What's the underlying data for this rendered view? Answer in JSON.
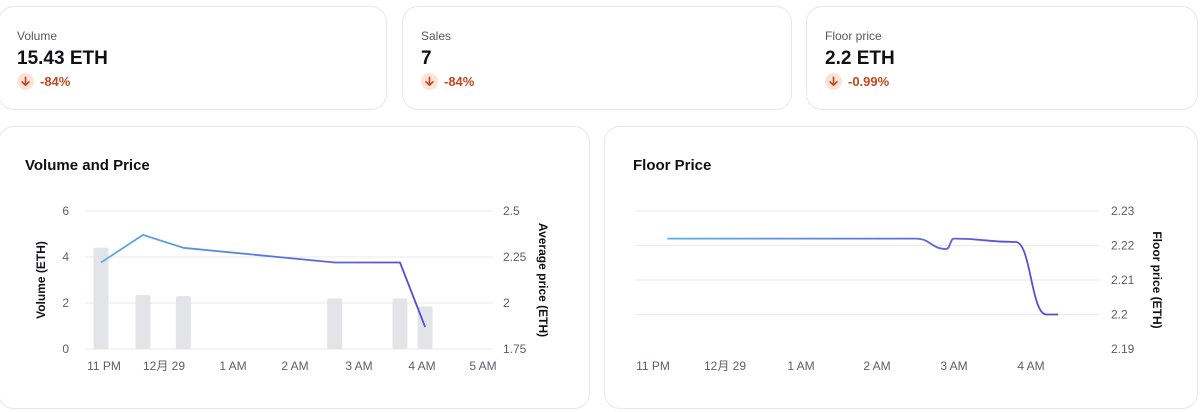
{
  "colors": {
    "negative": "#c2481f",
    "negative_bg": "#fbe3da",
    "bar": "#e3e4e7",
    "grid": "#e9eaed",
    "line_start": "#5ab0e6",
    "line_end": "#5b45d6"
  },
  "stats": [
    {
      "label": "Volume",
      "value": "15.43 ETH",
      "delta": "-84%",
      "icon": "arrow-down-icon"
    },
    {
      "label": "Sales",
      "value": "7",
      "delta": "-84%",
      "icon": "arrow-down-icon"
    },
    {
      "label": "Floor price",
      "value": "2.2 ETH",
      "delta": "-0.99%",
      "icon": "arrow-down-icon"
    }
  ],
  "chart_data": [
    {
      "type": "bar",
      "title": "Volume and Price",
      "x_tick_labels": [
        "11 PM",
        "12月 29",
        "1 AM",
        "2 AM",
        "3 AM",
        "4 AM",
        "5 AM"
      ],
      "left_axis": {
        "label": "Volume (ETH)",
        "ticks": [
          "6",
          "4",
          "2",
          "0"
        ],
        "range": [
          0,
          6
        ]
      },
      "right_axis": {
        "label": "Average price (ETH)",
        "ticks": [
          "2.5",
          "2.25",
          "2",
          "1.75"
        ],
        "range": [
          1.75,
          2.5
        ]
      },
      "grid": true,
      "series": [
        {
          "type": "bar",
          "axis": "left",
          "points": [
            {
              "x": 10.95,
              "y": 4.4
            },
            {
              "x": 11.65,
              "y": 2.35
            },
            {
              "x": 12.28,
              "y": 2.3
            },
            {
              "x": 14.62,
              "y": 2.2
            },
            {
              "x": 15.65,
              "y": 2.2
            },
            {
              "x": 16.05,
              "y": 1.85
            }
          ]
        },
        {
          "type": "line",
          "axis": "right",
          "points": [
            {
              "x": 10.95,
              "y": 2.22
            },
            {
              "x": 11.65,
              "y": 2.37
            },
            {
              "x": 12.28,
              "y": 2.3
            },
            {
              "x": 14.62,
              "y": 2.22
            },
            {
              "x": 15.65,
              "y": 2.22
            },
            {
              "x": 16.05,
              "y": 1.87
            }
          ]
        }
      ]
    },
    {
      "type": "line",
      "title": "Floor Price",
      "x_tick_labels": [
        "11 PM",
        "12月 29",
        "1 AM",
        "2 AM",
        "3 AM",
        "4 AM"
      ],
      "right_axis": {
        "label": "Floor price (ETH)",
        "ticks": [
          "2.23",
          "2.22",
          "2.21",
          "2.2",
          "2.19"
        ],
        "range": [
          2.19,
          2.23
        ]
      },
      "grid": true,
      "series": [
        {
          "points": [
            {
              "x": 11.2,
              "y": 2.222
            },
            {
              "x": 14.5,
              "y": 2.222
            },
            {
              "x": 14.9,
              "y": 2.219
            },
            {
              "x": 15.0,
              "y": 2.222
            },
            {
              "x": 15.8,
              "y": 2.221
            },
            {
              "x": 16.2,
              "y": 2.2
            },
            {
              "x": 16.35,
              "y": 2.2
            }
          ]
        }
      ]
    }
  ]
}
